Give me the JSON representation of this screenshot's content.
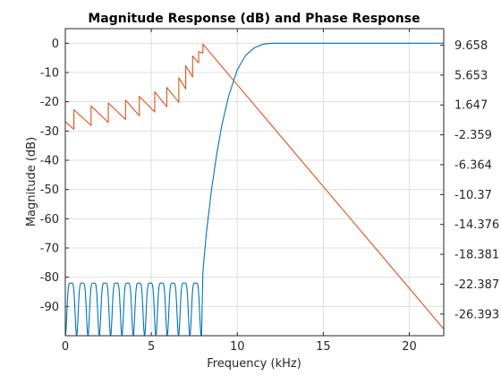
{
  "chart_data": {
    "type": "line",
    "title": "Magnitude Response (dB) and Phase Response",
    "xlabel": "Frequency (kHz)",
    "ylabel": "Magnitude (dB)",
    "xlim": [
      0,
      22
    ],
    "ylim": [
      -100,
      5
    ],
    "xticks": [
      0,
      5,
      10,
      15,
      20
    ],
    "xtick_labels": [
      "0",
      "5",
      "10",
      "15",
      "20"
    ],
    "yticks": [
      0,
      -10,
      -20,
      -30,
      -40,
      -50,
      -60,
      -70,
      -80,
      -90
    ],
    "ytick_labels": [
      "0",
      "-10",
      "-20",
      "-30",
      "-40",
      "-50",
      "-60",
      "-70",
      "-80",
      "-90"
    ],
    "right_axis": {
      "ylim": [
        -29.3,
        11.88
      ],
      "ticks": [
        9.658,
        5.653,
        1.647,
        -2.359,
        -6.364,
        -10.37,
        -14.376,
        -18.381,
        -22.387,
        -26.393
      ],
      "tick_labels": [
        "9.658",
        "5.653",
        "1.647",
        "-2.359",
        "-6.364",
        "-10.37",
        "-14.376",
        "-18.381",
        "-22.387",
        "-26.393"
      ]
    },
    "grid": true,
    "series": [
      {
        "axis": "left",
        "color": "#0072bd",
        "stopband_ripple": {
          "x_range": [
            0,
            7.9
          ],
          "peak_db": -82,
          "floor_db": -100,
          "lobes": 12
        },
        "x": [
          7.92,
          8.0,
          8.2,
          8.5,
          8.8,
          9.1,
          9.5,
          10.0,
          10.5,
          11.0,
          11.5,
          12.0,
          22.0
        ],
        "y": [
          -100,
          -78,
          -65,
          -50,
          -38,
          -28,
          -18,
          -9,
          -4,
          -1.5,
          -0.3,
          0,
          0
        ]
      },
      {
        "axis": "right",
        "color": "#d95319",
        "x": [
          0,
          0.5,
          0.5,
          1.5,
          1.5,
          2.5,
          2.5,
          3.5,
          3.5,
          4.3,
          4.3,
          5.2,
          5.2,
          5.9,
          5.9,
          6.6,
          6.6,
          7.0,
          7.0,
          7.4,
          7.4,
          7.75,
          7.75,
          8.0,
          8.0,
          22.0
        ],
        "y": [
          -0.6,
          -1.6,
          1.0,
          -1.1,
          1.5,
          -0.7,
          1.9,
          -0.3,
          2.3,
          0.2,
          2.8,
          0.7,
          3.4,
          1.4,
          4.0,
          2.0,
          5.3,
          3.8,
          6.9,
          5.4,
          8.2,
          7.3,
          8.8,
          8.6,
          9.8,
          -28.4
        ]
      }
    ]
  }
}
